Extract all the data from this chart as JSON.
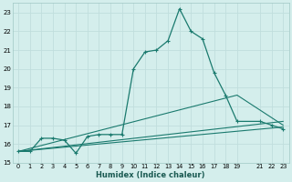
{
  "xlabel": "Humidex (Indice chaleur)",
  "bg_color": "#d4eeec",
  "grid_color": "#c0dedd",
  "line_color": "#1a7a6e",
  "xlim": [
    -0.5,
    23.5
  ],
  "ylim": [
    15,
    23.5
  ],
  "yticks": [
    15,
    16,
    17,
    18,
    19,
    20,
    21,
    22,
    23
  ],
  "xticks": [
    0,
    1,
    2,
    3,
    4,
    5,
    6,
    7,
    8,
    9,
    10,
    11,
    12,
    13,
    14,
    15,
    16,
    17,
    18,
    19,
    21,
    22,
    23
  ],
  "series": [
    {
      "x": [
        0,
        1,
        2,
        3,
        4,
        5,
        6,
        7,
        8,
        9,
        10,
        11,
        12,
        13,
        14,
        15,
        16,
        17,
        18,
        19,
        21,
        22,
        23
      ],
      "y": [
        15.6,
        15.6,
        16.3,
        16.3,
        16.2,
        15.5,
        16.4,
        16.5,
        16.5,
        16.5,
        20.0,
        20.9,
        21.0,
        21.5,
        23.2,
        22.0,
        21.6,
        19.8,
        18.6,
        17.2,
        17.2,
        17.0,
        16.8
      ],
      "marker": true
    },
    {
      "x": [
        0,
        23
      ],
      "y": [
        15.6,
        16.9
      ],
      "marker": false
    },
    {
      "x": [
        0,
        23
      ],
      "y": [
        15.6,
        17.2
      ],
      "marker": false
    },
    {
      "x": [
        0,
        19,
        23
      ],
      "y": [
        15.6,
        18.6,
        17.0
      ],
      "marker": false
    }
  ]
}
